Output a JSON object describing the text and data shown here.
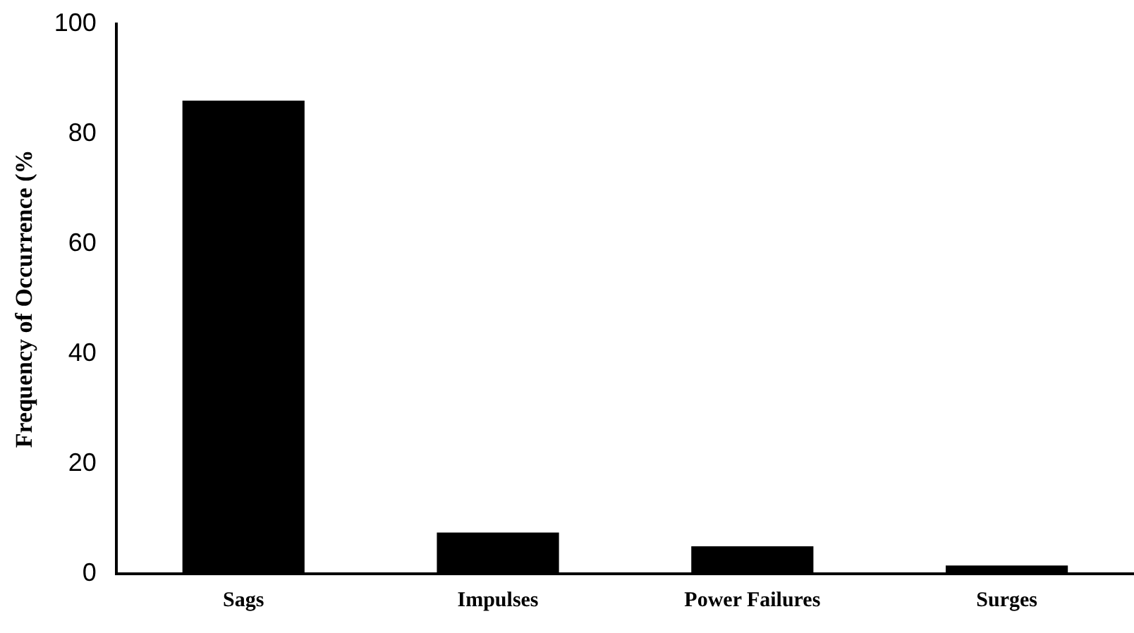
{
  "chart_data": {
    "type": "bar",
    "ylabel": "Frequency of Occurrence (%",
    "categories": [
      "Sags",
      "Impulses",
      "Power Failures",
      "Surges"
    ],
    "values": [
      86,
      7.5,
      5,
      1.5
    ],
    "color": "#000000",
    "ylim": [
      0,
      100
    ],
    "yticks": [
      0,
      20,
      40,
      60,
      80,
      100
    ],
    "grid": false,
    "legend": false
  }
}
